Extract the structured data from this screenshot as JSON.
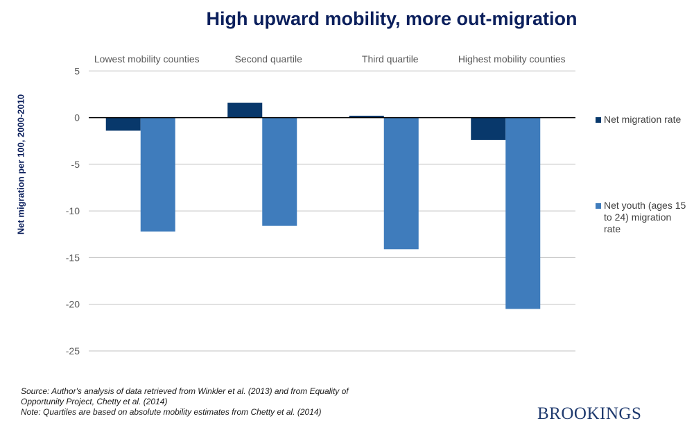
{
  "chart_data": {
    "type": "bar",
    "title": "High upward mobility, more out-migration",
    "xlabel": "",
    "ylabel": "Net migration per 100, 2000-2010",
    "categories": [
      "Lowest mobility counties",
      "Second quartile",
      "Third quartile",
      "Highest mobility counties"
    ],
    "series": [
      {
        "name": "Net migration rate",
        "color": "#08386b",
        "values": [
          -1.4,
          1.6,
          0.2,
          -2.4
        ]
      },
      {
        "name": "Net youth (ages 15 to 24) migration rate",
        "color": "#3f7cbc",
        "values": [
          -12.2,
          -11.6,
          -14.1,
          -20.5
        ]
      }
    ],
    "ylim": [
      -25,
      5
    ],
    "yticks": [
      5,
      0,
      -5,
      -10,
      -15,
      -20,
      -25
    ],
    "grid": true,
    "legend_position": "right",
    "category_labels_position": "top"
  },
  "legend": {
    "items": [
      {
        "label": "Net migration rate"
      },
      {
        "label": "Net youth (ages 15 to 24) migration rate"
      }
    ]
  },
  "footer": {
    "source_line1": "Source: Author's analysis of data retrieved  from Winkler et al. (2013)  and from Equality of",
    "source_line2": "Opportunity  Project, Chetty et al. (2014)",
    "note": "Note: Quartiles are  based on absolute mobility estimates from Chetty et al. (2014)"
  },
  "brand": {
    "logo_text": "BROOKINGS"
  }
}
